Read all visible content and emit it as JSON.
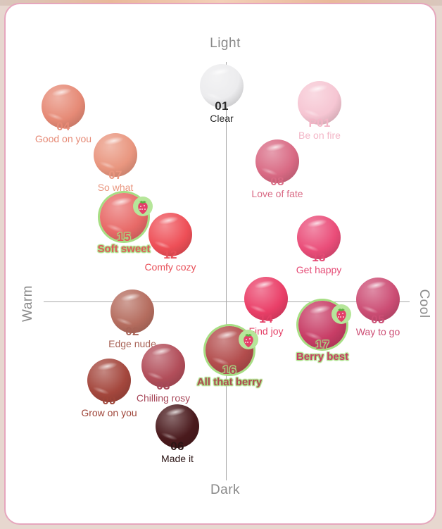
{
  "axes": {
    "top": "Light",
    "bottom": "Dark",
    "left": "Warm",
    "right": "Cool"
  },
  "shades": [
    {
      "num": "01",
      "name": "Clear",
      "color": "#ececee",
      "text": "#2b2b2b",
      "name_color": "#2b2b2b",
      "highlight": false
    },
    {
      "num": "P01",
      "name": "Be on fire",
      "color": "#f6c6d3",
      "text": "#f3b6c7",
      "name_color": "#f3b6c7",
      "highlight": false
    },
    {
      "num": "04",
      "name": "Good on you",
      "color": "#e68a76",
      "text": "#e68a76",
      "name_color": "#e68a76",
      "highlight": false
    },
    {
      "num": "07",
      "name": "So what",
      "color": "#e9967f",
      "text": "#e9967f",
      "name_color": "#e9967f",
      "highlight": false
    },
    {
      "num": "08",
      "name": "Love of fate",
      "color": "#d96a84",
      "text": "#d96a84",
      "name_color": "#d96a84",
      "highlight": false
    },
    {
      "num": "15",
      "name": "Soft sweet",
      "color": "#e86a68",
      "text": "#e0585c",
      "name_color": "#e0585c",
      "highlight": true
    },
    {
      "num": "12",
      "name": "Comfy cozy",
      "color": "#ee4f57",
      "text": "#e84f58",
      "name_color": "#e84f58",
      "highlight": false
    },
    {
      "num": "13",
      "name": "Get happy",
      "color": "#ea4d79",
      "text": "#e54a75",
      "name_color": "#e54a75",
      "highlight": false
    },
    {
      "num": "14",
      "name": "Find joy",
      "color": "#ea3f68",
      "text": "#e43f66",
      "name_color": "#e43f66",
      "highlight": false
    },
    {
      "num": "05",
      "name": "Way to go",
      "color": "#cc4d74",
      "text": "#cc4d74",
      "name_color": "#cc4d74",
      "highlight": false
    },
    {
      "num": "02",
      "name": "Edge nude",
      "color": "#b56d5f",
      "text": "#a86357",
      "name_color": "#a86357",
      "highlight": false
    },
    {
      "num": "17",
      "name": "Berry best",
      "color": "#c83d66",
      "text": "#c83d66",
      "name_color": "#c83d66",
      "highlight": true
    },
    {
      "num": "16",
      "name": "All that berry",
      "color": "#b34d4d",
      "text": "#b04a53",
      "name_color": "#b04a53",
      "highlight": true
    },
    {
      "num": "03",
      "name": "Chilling rosy",
      "color": "#b24e5a",
      "text": "#a8485a",
      "name_color": "#a8485a",
      "highlight": false
    },
    {
      "num": "09",
      "name": "Grow on you",
      "color": "#a4473d",
      "text": "#9e4438",
      "name_color": "#9e4438",
      "highlight": false
    },
    {
      "num": "06",
      "name": "Made it",
      "color": "#4a1a1d",
      "text": "#2b1515",
      "name_color": "#2b1515",
      "highlight": false
    }
  ],
  "icons": {
    "highlight": "strawberry-icon"
  },
  "colors": {
    "border": "#e6a6bd",
    "highlight_glow": "#a7de84",
    "axis": "#a9a9a9"
  }
}
